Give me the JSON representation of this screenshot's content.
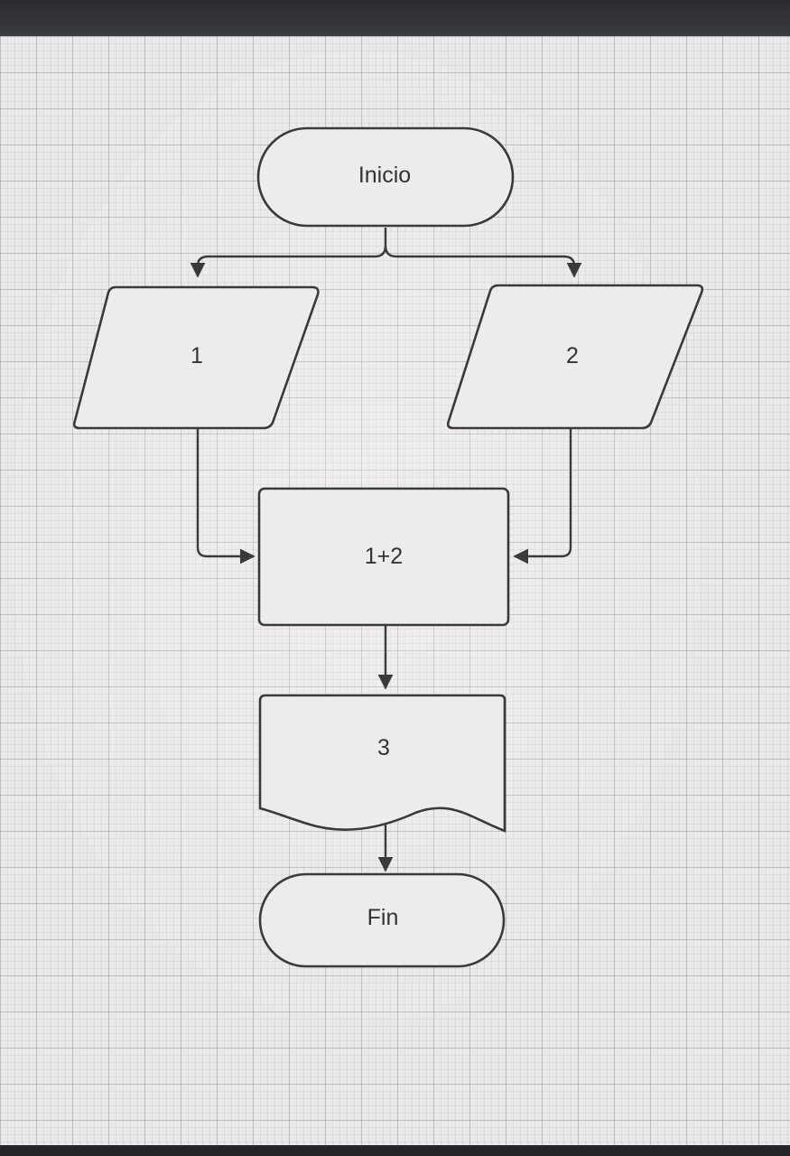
{
  "flowchart": {
    "start": "Inicio",
    "input_1": "1",
    "input_2": "2",
    "process": "1+2",
    "output": "3",
    "end": "Fin"
  },
  "colors": {
    "stroke": "#3a3a3a",
    "shape_fill": "#ececef",
    "grid_background": "#e9e9eb"
  }
}
